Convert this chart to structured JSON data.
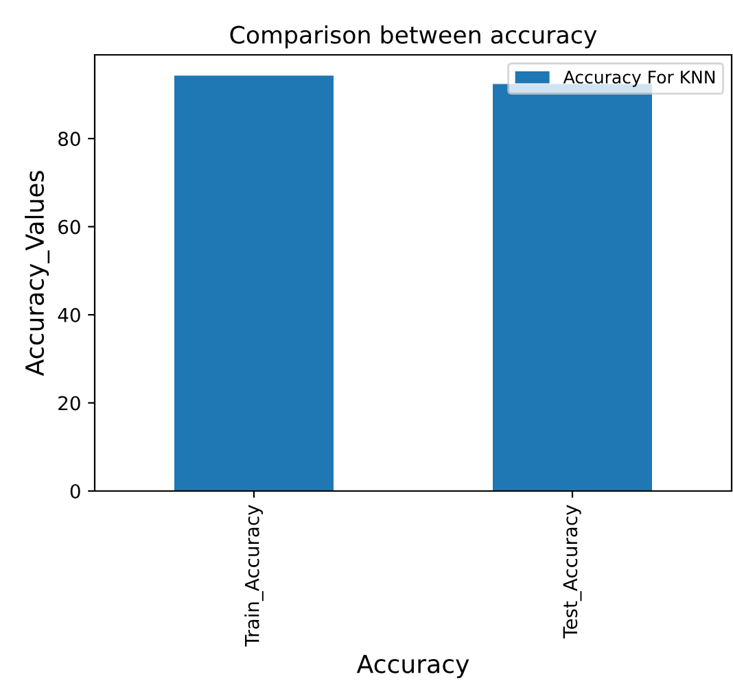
{
  "chart_data": {
    "type": "bar",
    "title": "Comparison between accuracy",
    "xlabel": "Accuracy",
    "ylabel": "Accuracy_Values",
    "categories": [
      "Train_Accuracy",
      "Test_Accuracy"
    ],
    "series": [
      {
        "name": "Accuracy For KNN",
        "color": "#1f77b4",
        "values": [
          94.3,
          92.4
        ]
      }
    ],
    "ylim": [
      0,
      99
    ],
    "yticks": [
      0,
      20,
      40,
      60,
      80
    ],
    "grid": false,
    "legend": "top right"
  }
}
